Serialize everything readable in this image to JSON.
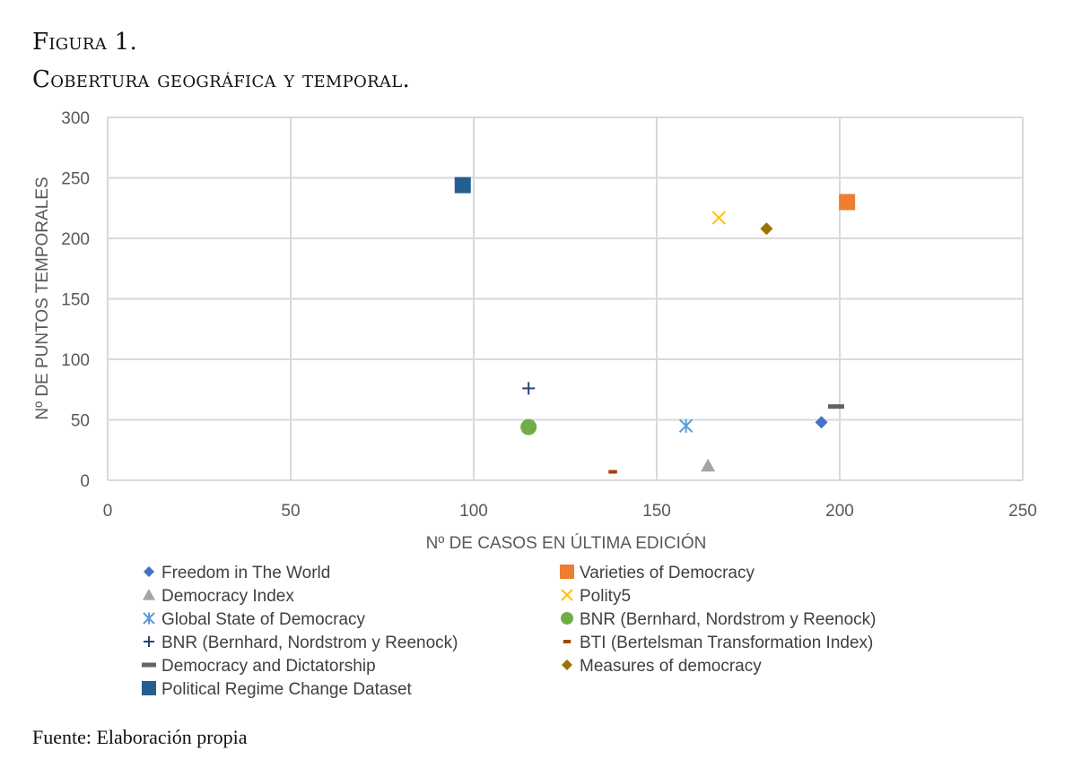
{
  "figure": {
    "label": "Figura 1.",
    "title": "Cobertura geográfica y temporal.",
    "source": "Fuente: Elaboración propia"
  },
  "chart_data": {
    "type": "scatter",
    "xlabel": "Nº DE CASOS EN ÚLTIMA EDICIÓN",
    "ylabel": "Nº DE PUNTOS TEMPORALES",
    "xlim": [
      0,
      250
    ],
    "ylim": [
      0,
      300
    ],
    "xticks": [
      0,
      50,
      100,
      150,
      200,
      250
    ],
    "yticks": [
      0,
      50,
      100,
      150,
      200,
      250,
      300
    ],
    "grid": true,
    "legend_position": "bottom",
    "series": [
      {
        "name": "Freedom in The World",
        "x": 195,
        "y": 48,
        "marker": "diamond",
        "color": "#4472C4"
      },
      {
        "name": "Varieties of Democracy",
        "x": 202,
        "y": 230,
        "marker": "square",
        "color": "#ED7D31"
      },
      {
        "name": "Democracy Index",
        "x": 164,
        "y": 12,
        "marker": "triangle",
        "color": "#A5A5A5"
      },
      {
        "name": "Polity5",
        "x": 167,
        "y": 217,
        "marker": "x",
        "color": "#FFC000"
      },
      {
        "name": "Global State of Democracy",
        "x": 158,
        "y": 45,
        "marker": "star",
        "color": "#5B9BD5"
      },
      {
        "name": "BNR (Bernhard, Nordstrom y Reenock)",
        "x": 115,
        "y": 44,
        "marker": "circle",
        "color": "#70AD47"
      },
      {
        "name": "BNR (Bernhard, Nordstrom y Reenock)",
        "x": 115,
        "y": 76,
        "marker": "plus",
        "color": "#264478"
      },
      {
        "name": "BTI (Bertelsman Transformation Index)",
        "x": 138,
        "y": 7,
        "marker": "dash",
        "color": "#9E480E"
      },
      {
        "name": "Democracy and Dictatorship",
        "x": 199,
        "y": 61,
        "marker": "longdash",
        "color": "#636363"
      },
      {
        "name": "Measures of democracy",
        "x": 180,
        "y": 208,
        "marker": "diamond",
        "color": "#997300"
      },
      {
        "name": "Political Regime Change Dataset",
        "x": 97,
        "y": 244,
        "marker": "square",
        "color": "#255E91"
      }
    ]
  }
}
